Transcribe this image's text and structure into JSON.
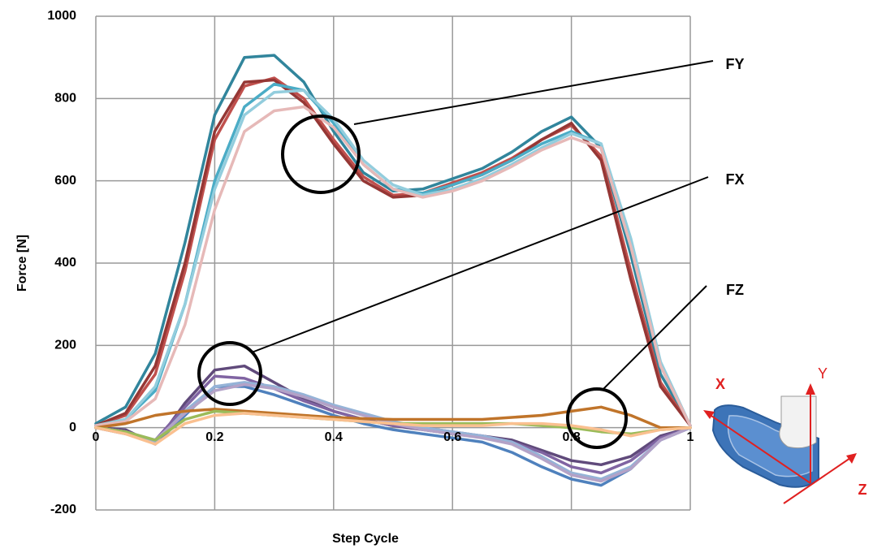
{
  "chart_data": {
    "type": "line",
    "xlabel": "Step Cycle",
    "ylabel": "Force [N]",
    "x": [
      0,
      0.05,
      0.1,
      0.15,
      0.2,
      0.25,
      0.3,
      0.35,
      0.4,
      0.45,
      0.5,
      0.55,
      0.6,
      0.65,
      0.7,
      0.75,
      0.8,
      0.85,
      0.9,
      0.95,
      1
    ],
    "xlim": [
      0,
      1
    ],
    "xticks": [
      0,
      0.2,
      0.4,
      0.6,
      0.8,
      1
    ],
    "ylim": [
      -200,
      1000
    ],
    "yticks": [
      -200,
      0,
      200,
      400,
      600,
      800,
      1000
    ],
    "grid": true,
    "series": [
      {
        "color": "#31859c",
        "values": [
          10,
          50,
          180,
          450,
          760,
          900,
          905,
          840,
          720,
          620,
          575,
          580,
          605,
          630,
          670,
          720,
          755,
          680,
          420,
          130,
          5
        ]
      },
      {
        "color": "#c0504d",
        "values": [
          5,
          30,
          130,
          380,
          700,
          830,
          850,
          800,
          700,
          610,
          565,
          570,
          595,
          620,
          655,
          700,
          735,
          660,
          380,
          110,
          5
        ]
      },
      {
        "color": "#953735",
        "values": [
          5,
          35,
          150,
          400,
          720,
          840,
          845,
          790,
          690,
          600,
          560,
          565,
          590,
          615,
          650,
          700,
          740,
          650,
          360,
          100,
          5
        ]
      },
      {
        "color": "#4bacc6",
        "values": [
          5,
          20,
          90,
          300,
          600,
          780,
          835,
          820,
          740,
          640,
          580,
          570,
          590,
          615,
          650,
          690,
          720,
          690,
          450,
          150,
          5
        ]
      },
      {
        "color": "#93cddd",
        "values": [
          5,
          20,
          100,
          300,
          580,
          760,
          815,
          820,
          750,
          650,
          590,
          565,
          580,
          605,
          640,
          680,
          715,
          690,
          460,
          160,
          5
        ]
      },
      {
        "color": "#e6b9b8",
        "values": [
          5,
          15,
          70,
          250,
          530,
          720,
          770,
          780,
          730,
          640,
          580,
          560,
          575,
          600,
          635,
          675,
          705,
          680,
          440,
          150,
          5
        ]
      },
      {
        "color": "#4f81bd",
        "values": [
          0,
          -10,
          -40,
          30,
          100,
          100,
          80,
          55,
          30,
          10,
          -5,
          -15,
          -25,
          -35,
          -60,
          -95,
          -125,
          -140,
          -100,
          -30,
          0
        ]
      },
      {
        "color": "#604a7b",
        "values": [
          0,
          -5,
          -40,
          60,
          140,
          150,
          110,
          70,
          40,
          20,
          5,
          -5,
          -15,
          -20,
          -30,
          -55,
          -80,
          -90,
          -70,
          -20,
          0
        ]
      },
      {
        "color": "#8064a2",
        "values": [
          0,
          -15,
          -30,
          50,
          125,
          120,
          95,
          65,
          40,
          20,
          5,
          0,
          -10,
          -20,
          -35,
          -60,
          -95,
          -110,
          -80,
          -25,
          0
        ]
      },
      {
        "color": "#95b3d7",
        "values": [
          0,
          -10,
          -35,
          40,
          100,
          110,
          100,
          80,
          55,
          35,
          15,
          0,
          -10,
          -20,
          -35,
          -70,
          -110,
          -125,
          -95,
          -30,
          0
        ]
      },
      {
        "color": "#b3a2c7",
        "values": [
          0,
          -10,
          -30,
          35,
          90,
          105,
          95,
          75,
          50,
          30,
          10,
          -5,
          -15,
          -25,
          -40,
          -75,
          -115,
          -130,
          -100,
          -30,
          0
        ]
      },
      {
        "color": "#c0742a",
        "values": [
          0,
          10,
          30,
          40,
          45,
          40,
          35,
          30,
          25,
          22,
          20,
          20,
          20,
          20,
          25,
          30,
          40,
          50,
          30,
          0,
          0
        ]
      },
      {
        "color": "#9bbb59",
        "values": [
          0,
          -10,
          -30,
          20,
          40,
          35,
          30,
          25,
          20,
          15,
          10,
          10,
          10,
          10,
          10,
          5,
          0,
          -10,
          -15,
          -5,
          0
        ]
      },
      {
        "color": "#fac090",
        "values": [
          0,
          -15,
          -40,
          10,
          30,
          35,
          30,
          25,
          20,
          15,
          10,
          5,
          5,
          5,
          10,
          10,
          5,
          -5,
          -20,
          -5,
          0
        ]
      }
    ],
    "annotations": [
      "FY",
      "FX",
      "FZ"
    ]
  },
  "inset": {
    "x_label": "X",
    "y_label": "Y",
    "z_label": "Z"
  }
}
